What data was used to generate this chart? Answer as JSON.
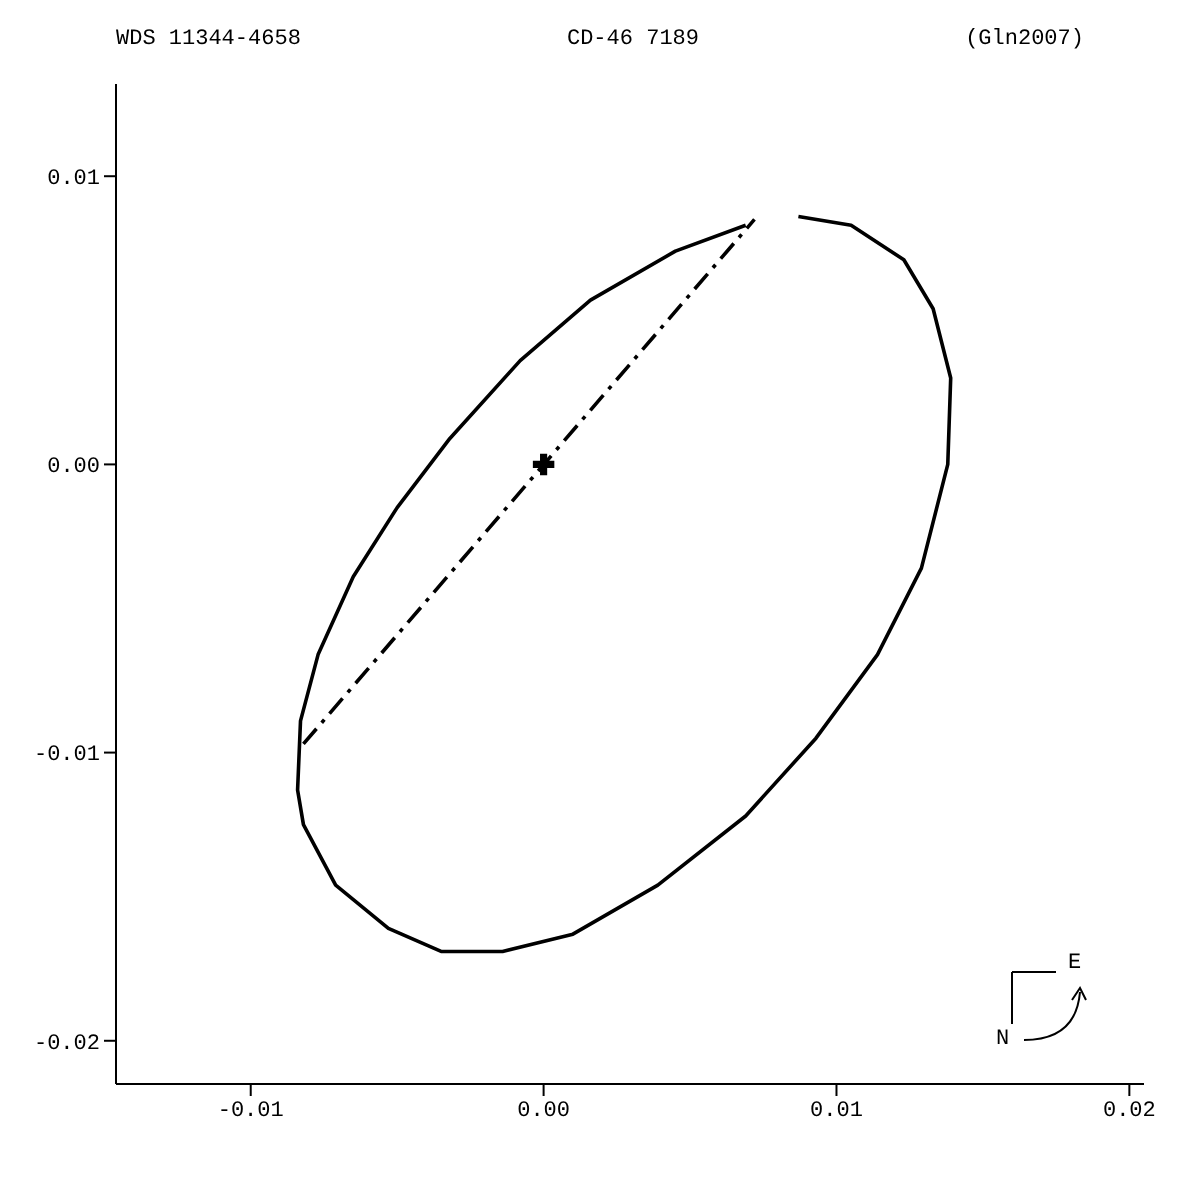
{
  "chart_data": {
    "type": "line",
    "title": "WDS 11344-4658",
    "subtitle": "CD-46 7189",
    "annotations": [
      "(Gln2007)",
      "E",
      "N"
    ],
    "xlim": [
      -0.0146,
      0.0205
    ],
    "ylim": [
      -0.0215,
      0.0132
    ],
    "xticks": [
      {
        "value": -0.01,
        "label": "-0.01"
      },
      {
        "value": 0,
        "label": "0.00"
      },
      {
        "value": 0.01,
        "label": "0.01"
      },
      {
        "value": 0.02,
        "label": "0.02"
      }
    ],
    "yticks": [
      {
        "value": -0.02,
        "label": "-0.02"
      },
      {
        "value": -0.01,
        "label": "-0.01"
      },
      {
        "value": 0,
        "label": "0.00"
      },
      {
        "value": 0.01,
        "label": "0.01"
      }
    ],
    "grid": false,
    "legend": false,
    "series": [
      {
        "color": "#000000",
        "marker": "none",
        "line_style": "solid",
        "x": [
          0.0087,
          0.0105,
          0.0123,
          0.0133,
          0.0139,
          0.0138,
          0.0129,
          0.0114,
          0.0093,
          0.0069,
          0.0039,
          0.001,
          -0.0014,
          -0.0035,
          -0.0053,
          -0.0071,
          -0.0082,
          -0.0084,
          -0.0083,
          -0.0077,
          -0.0065,
          -0.005,
          -0.0032,
          -0.0008,
          0.0016,
          0.0045,
          0.0069
        ],
        "values": [
          0.0086,
          0.0083,
          0.0071,
          0.0054,
          0.003,
          0.0,
          -0.0036,
          -0.0066,
          -0.0095,
          -0.0122,
          -0.0146,
          -0.0163,
          -0.0169,
          -0.0169,
          -0.0161,
          -0.0146,
          -0.0125,
          -0.0113,
          -0.0089,
          -0.0066,
          -0.0039,
          -0.0015,
          0.0009,
          0.0036,
          0.0057,
          0.0074,
          0.0083
        ]
      },
      {
        "color": "#000000",
        "marker": "none",
        "line_style": "dashed",
        "x": [
          -0.0082,
          0.0072
        ],
        "values": [
          -0.0097,
          0.0085
        ]
      },
      {
        "type": "scatter",
        "color": "#000000",
        "marker": "cross",
        "x": [
          0
        ],
        "values": [
          0
        ]
      }
    ]
  }
}
